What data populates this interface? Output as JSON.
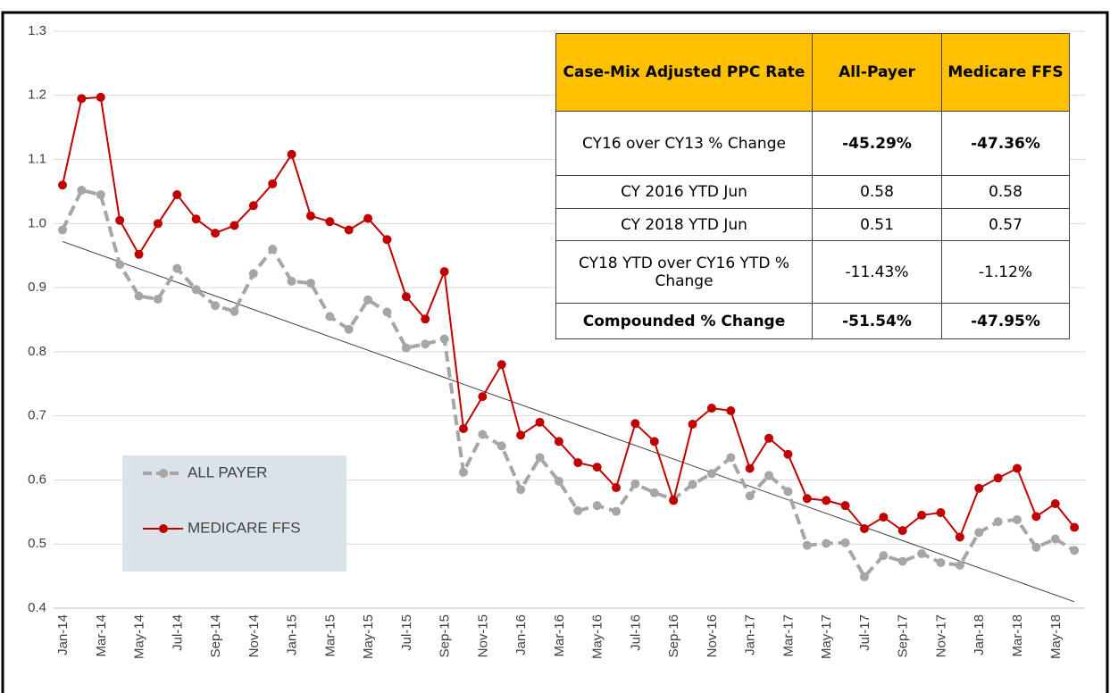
{
  "chart_data": {
    "type": "line",
    "categories": [
      "Jan-14",
      null,
      "Mar-14",
      null,
      "May-14",
      null,
      "Jul-14",
      null,
      "Sep-14",
      null,
      "Nov-14",
      null,
      "Jan-15",
      null,
      "Mar-15",
      null,
      "May-15",
      null,
      "Jul-15",
      null,
      "Sep-15",
      null,
      "Nov-15",
      null,
      "Jan-16",
      null,
      "Mar-16",
      null,
      "May-16",
      null,
      "Jul-16",
      null,
      "Sep-16",
      null,
      "Nov-16",
      null,
      "Jan-17",
      null,
      "Mar-17",
      null,
      "May-17",
      null,
      "Jul-17",
      null,
      "Sep-17",
      null,
      "Nov-17",
      null,
      "Jan-18",
      null,
      "Mar-18",
      null,
      "May-18",
      null
    ],
    "series": [
      {
        "name": "ALL PAYER",
        "color": "#a6a6a6",
        "dashed": true,
        "values": [
          0.99,
          1.052,
          1.045,
          0.936,
          0.887,
          0.882,
          0.93,
          0.897,
          0.872,
          0.863,
          0.922,
          0.96,
          0.91,
          0.907,
          0.855,
          0.835,
          0.881,
          0.862,
          0.806,
          0.812,
          0.82,
          0.612,
          0.671,
          0.653,
          0.585,
          0.635,
          0.598,
          0.552,
          0.56,
          0.551,
          0.594,
          0.58,
          0.57,
          0.593,
          0.61,
          0.635,
          0.575,
          0.607,
          0.582,
          0.498,
          0.501,
          0.502,
          0.449,
          0.482,
          0.473,
          0.485,
          0.471,
          0.467,
          0.518,
          0.535,
          0.538,
          0.495,
          0.508,
          0.49
        ]
      },
      {
        "name": "MEDICARE FFS",
        "color": "#c00000",
        "dashed": false,
        "values": [
          1.06,
          1.195,
          1.197,
          1.005,
          0.952,
          1.0,
          1.045,
          1.007,
          0.985,
          0.997,
          1.028,
          1.062,
          1.108,
          1.012,
          1.003,
          0.99,
          1.008,
          0.975,
          0.886,
          0.851,
          0.925,
          0.68,
          0.73,
          0.78,
          0.67,
          0.69,
          0.66,
          0.627,
          0.62,
          0.588,
          0.688,
          0.66,
          0.568,
          0.687,
          0.712,
          0.708,
          0.618,
          0.665,
          0.64,
          0.571,
          0.568,
          0.56,
          0.524,
          0.542,
          0.521,
          0.545,
          0.549,
          0.511,
          0.587,
          0.603,
          0.618,
          0.543,
          0.563,
          0.526
        ]
      }
    ],
    "trendline": {
      "color": "#404040",
      "values": [
        0.972,
        0.41
      ]
    },
    "ylim": [
      0.4,
      1.3
    ],
    "yticks": [
      0.4,
      0.5,
      0.6,
      0.7,
      0.8,
      0.9,
      {
        "value": 1,
        "label": "1.0"
      },
      1.1,
      1.2,
      1.3
    ],
    "grid": true
  },
  "table": {
    "header": [
      "Case-Mix Adjusted PPC Rate",
      "All-Payer",
      "Medicare FFS"
    ],
    "rows": [
      [
        "CY16 over CY13 % Change",
        "-45.29%",
        "-47.36%"
      ],
      [
        "CY 2016 YTD Jun",
        "0.58",
        "0.58"
      ],
      [
        "CY 2018 YTD Jun",
        "0.51",
        "0.57"
      ],
      [
        "CY18 YTD over CY16 YTD % Change",
        "-11.43%",
        "-1.12%"
      ],
      [
        "Compounded % Change",
        "-51.54%",
        "-47.95%"
      ]
    ]
  }
}
